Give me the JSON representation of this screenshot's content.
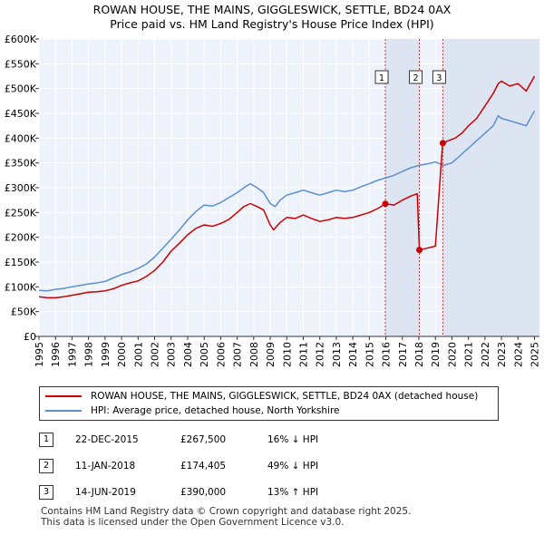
{
  "title_line1": "ROWAN HOUSE, THE MAINS, GIGGLESWICK, SETTLE, BD24 0AX",
  "title_line2": "Price paid vs. HM Land Registry's House Price Index (HPI)",
  "chart_data": {
    "type": "line",
    "title": "Price paid vs. HM Land Registry's House Price Index (HPI)",
    "xlabel": "",
    "ylabel": "",
    "xlim": [
      1995,
      2025.3
    ],
    "ylim": [
      0,
      600000
    ],
    "y_ticks": [
      0,
      50000,
      100000,
      150000,
      200000,
      250000,
      300000,
      350000,
      400000,
      450000,
      500000,
      550000,
      600000
    ],
    "y_tick_labels": [
      "£0",
      "£50K",
      "£100K",
      "£150K",
      "£200K",
      "£250K",
      "£300K",
      "£350K",
      "£400K",
      "£450K",
      "£500K",
      "£550K",
      "£600K"
    ],
    "x_ticks": [
      1995,
      1996,
      1997,
      1998,
      1999,
      2000,
      2001,
      2002,
      2003,
      2004,
      2005,
      2006,
      2007,
      2008,
      2009,
      2010,
      2011,
      2012,
      2013,
      2014,
      2015,
      2016,
      2017,
      2018,
      2019,
      2020,
      2021,
      2022,
      2023,
      2024,
      2025
    ],
    "grid": true,
    "series": [
      {
        "name": "ROWAN HOUSE, THE MAINS, GIGGLESWICK, SETTLE, BD24 0AX (detached house)",
        "color": "#cc0000",
        "x": [
          1995,
          1995.5,
          1996,
          1996.5,
          1997,
          1997.5,
          1998,
          1998.5,
          1999,
          1999.5,
          2000,
          2000.5,
          2001,
          2001.5,
          2002,
          2002.5,
          2003,
          2003.5,
          2004,
          2004.5,
          2005,
          2005.5,
          2006,
          2006.5,
          2007,
          2007.4,
          2007.8,
          2008.2,
          2008.6,
          2009,
          2009.2,
          2009.6,
          2010,
          2010.5,
          2011,
          2011.5,
          2012,
          2012.5,
          2013,
          2013.5,
          2014,
          2014.5,
          2015,
          2015.5,
          2015.97,
          2016.5,
          2017,
          2017.5,
          2017.9,
          2018.03,
          2018.5,
          2019,
          2019.44,
          2019.8,
          2020.2,
          2020.6,
          2021,
          2021.5,
          2022,
          2022.5,
          2022.8,
          2023,
          2023.5,
          2024,
          2024.5,
          2025
        ],
        "y": [
          80000,
          78000,
          78000,
          80000,
          83000,
          86000,
          89000,
          90000,
          92000,
          96000,
          103000,
          108000,
          112000,
          121000,
          133000,
          150000,
          172000,
          188000,
          205000,
          218000,
          225000,
          222000,
          228000,
          236000,
          250000,
          262000,
          268000,
          262000,
          255000,
          225000,
          215000,
          230000,
          240000,
          238000,
          245000,
          238000,
          232000,
          235000,
          240000,
          238000,
          240000,
          245000,
          250000,
          258000,
          267500,
          265000,
          275000,
          283000,
          288000,
          174405,
          178000,
          182000,
          390000,
          395000,
          400000,
          410000,
          425000,
          440000,
          465000,
          490000,
          510000,
          515000,
          505000,
          510000,
          495000,
          525000
        ]
      },
      {
        "name": "HPI: Average price, detached house, North Yorkshire",
        "color": "#5b8fcf",
        "x": [
          1995,
          1995.5,
          1996,
          1996.5,
          1997,
          1997.5,
          1998,
          1998.5,
          1999,
          1999.5,
          2000,
          2000.5,
          2001,
          2001.5,
          2002,
          2002.5,
          2003,
          2003.5,
          2004,
          2004.5,
          2005,
          2005.5,
          2006,
          2006.5,
          2007,
          2007.5,
          2007.8,
          2008.2,
          2008.6,
          2009,
          2009.3,
          2009.6,
          2010,
          2010.5,
          2011,
          2011.5,
          2012,
          2012.5,
          2013,
          2013.5,
          2014,
          2014.5,
          2015,
          2015.5,
          2016,
          2016.5,
          2017,
          2017.5,
          2018,
          2018.5,
          2019,
          2019.5,
          2020,
          2020.5,
          2021,
          2021.5,
          2022,
          2022.5,
          2022.8,
          2023,
          2023.5,
          2024,
          2024.5,
          2025
        ],
        "y": [
          93000,
          92000,
          95000,
          97000,
          100000,
          103000,
          106000,
          108000,
          111000,
          118000,
          125000,
          130000,
          137000,
          146000,
          160000,
          178000,
          196000,
          215000,
          235000,
          252000,
          265000,
          263000,
          270000,
          280000,
          290000,
          302000,
          308000,
          300000,
          290000,
          268000,
          262000,
          275000,
          285000,
          290000,
          295000,
          290000,
          285000,
          290000,
          295000,
          292000,
          295000,
          302000,
          308000,
          315000,
          320000,
          325000,
          333000,
          340000,
          345000,
          348000,
          352000,
          345000,
          350000,
          365000,
          380000,
          395000,
          410000,
          425000,
          445000,
          440000,
          435000,
          430000,
          425000,
          455000
        ]
      }
    ],
    "sales": [
      {
        "marker": "1",
        "x": 2015.97,
        "y": 267500
      },
      {
        "marker": "2",
        "x": 2018.03,
        "y": 174405
      },
      {
        "marker": "3",
        "x": 2019.45,
        "y": 390000
      }
    ]
  },
  "legend": {
    "items": [
      {
        "label": "ROWAN HOUSE, THE MAINS, GIGGLESWICK, SETTLE, BD24 0AX (detached house)",
        "color": "#cc0000"
      },
      {
        "label": "HPI: Average price, detached house, North Yorkshire",
        "color": "#5b8fcf"
      }
    ]
  },
  "sales_table": [
    {
      "marker": "1",
      "date": "22-DEC-2015",
      "price": "£267,500",
      "hpi": "16% ↓ HPI"
    },
    {
      "marker": "2",
      "date": "11-JAN-2018",
      "price": "£174,405",
      "hpi": "49% ↓ HPI"
    },
    {
      "marker": "3",
      "date": "14-JUN-2019",
      "price": "£390,000",
      "hpi": "13% ↑ HPI"
    }
  ],
  "footer": {
    "line1": "Contains HM Land Registry data © Crown copyright and database right 2025.",
    "line2": "This data is licensed under the Open Government Licence v3.0."
  }
}
